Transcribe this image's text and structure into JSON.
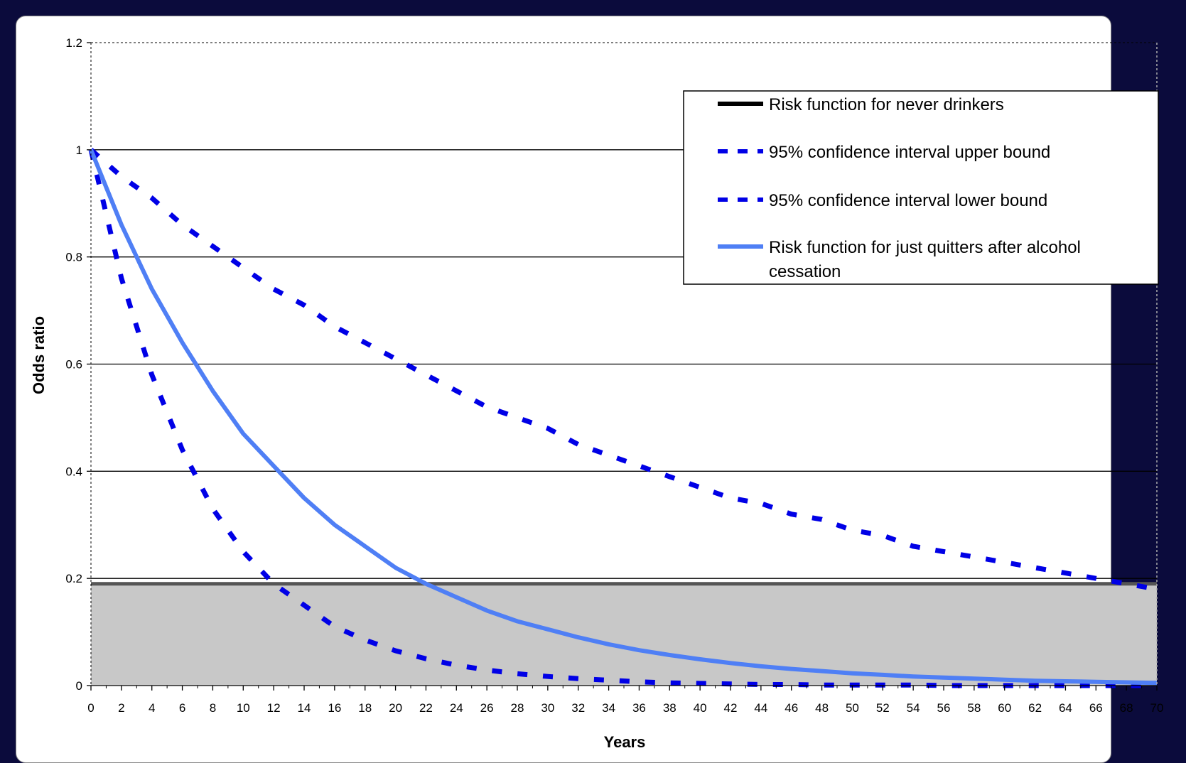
{
  "chart_data": {
    "type": "line",
    "title": "",
    "xlabel": "Years",
    "ylabel": "Odds ratio",
    "xlim": [
      0,
      70
    ],
    "ylim": [
      0,
      1.2
    ],
    "x_ticks": [
      0,
      2,
      4,
      6,
      8,
      10,
      12,
      14,
      16,
      18,
      20,
      22,
      24,
      26,
      28,
      30,
      32,
      34,
      36,
      38,
      40,
      42,
      44,
      46,
      48,
      50,
      52,
      54,
      56,
      58,
      60,
      62,
      64,
      66,
      68,
      70
    ],
    "y_ticks": [
      "0",
      "0.2",
      "0.4",
      "0.6",
      "0.8",
      "1",
      "1.2"
    ],
    "grid": "horizontal",
    "legend_position": "top-right",
    "shaded_region": {
      "y_from": 0,
      "y_to": 0.19,
      "color": "#c8c8c8"
    },
    "x": [
      0,
      2,
      4,
      6,
      8,
      10,
      12,
      14,
      16,
      18,
      20,
      22,
      24,
      26,
      28,
      30,
      32,
      34,
      36,
      38,
      40,
      42,
      44,
      46,
      48,
      50,
      52,
      54,
      56,
      58,
      60,
      62,
      64,
      66,
      68,
      70
    ],
    "series": [
      {
        "name": "Risk function for never drinkers",
        "style": "solid",
        "color": "#000000",
        "values": [
          0.19,
          0.19,
          0.19,
          0.19,
          0.19,
          0.19,
          0.19,
          0.19,
          0.19,
          0.19,
          0.19,
          0.19,
          0.19,
          0.19,
          0.19,
          0.19,
          0.19,
          0.19,
          0.19,
          0.19,
          0.19,
          0.19,
          0.19,
          0.19,
          0.19,
          0.19,
          0.19,
          0.19,
          0.19,
          0.19,
          0.19,
          0.19,
          0.19,
          0.19,
          0.19,
          0.19
        ]
      },
      {
        "name": "95% confidence interval upper bound",
        "style": "dashed",
        "color": "#0000e6",
        "values": [
          1.0,
          0.95,
          0.91,
          0.86,
          0.82,
          0.78,
          0.74,
          0.71,
          0.67,
          0.64,
          0.61,
          0.58,
          0.55,
          0.52,
          0.5,
          0.48,
          0.45,
          0.43,
          0.41,
          0.39,
          0.37,
          0.35,
          0.34,
          0.32,
          0.31,
          0.29,
          0.28,
          0.26,
          0.25,
          0.24,
          0.23,
          0.22,
          0.21,
          0.2,
          0.19,
          0.18
        ]
      },
      {
        "name": "95% confidence interval lower bound",
        "style": "dashed",
        "color": "#0000e6",
        "values": [
          1.0,
          0.76,
          0.58,
          0.44,
          0.33,
          0.25,
          0.19,
          0.15,
          0.11,
          0.085,
          0.065,
          0.05,
          0.038,
          0.029,
          0.022,
          0.017,
          0.013,
          0.01,
          0.007,
          0.005,
          0.004,
          0.003,
          0.002,
          0.002,
          0.001,
          0.001,
          0.001,
          0.001,
          0.0,
          0.0,
          0.0,
          0.0,
          0.0,
          0.0,
          0.0,
          0.0
        ]
      },
      {
        "name": "Risk function for just quitters after alcohol cessation",
        "style": "solid",
        "color": "#4f7ff5",
        "values": [
          1.0,
          0.86,
          0.74,
          0.64,
          0.55,
          0.47,
          0.41,
          0.35,
          0.3,
          0.26,
          0.22,
          0.19,
          0.165,
          0.14,
          0.12,
          0.105,
          0.09,
          0.077,
          0.066,
          0.057,
          0.049,
          0.042,
          0.036,
          0.031,
          0.027,
          0.023,
          0.02,
          0.017,
          0.015,
          0.013,
          0.011,
          0.009,
          0.008,
          0.007,
          0.006,
          0.005
        ]
      }
    ]
  },
  "legend": {
    "items": [
      {
        "label": "Risk function for never drinkers"
      },
      {
        "label": "95% confidence interval upper bound"
      },
      {
        "label": "95% confidence interval lower bound"
      },
      {
        "label_line1": "Risk function for just quitters after alcohol",
        "label_line2": "cessation"
      }
    ]
  }
}
